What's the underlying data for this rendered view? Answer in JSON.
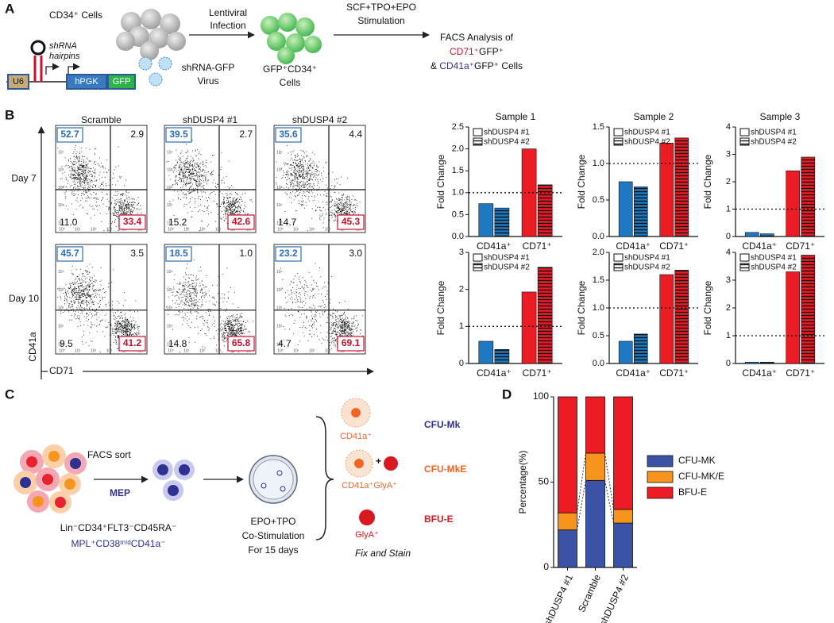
{
  "panels": {
    "a": {
      "label": "A",
      "cd34": "CD34⁺ Cells",
      "infection": [
        "Lentiviral",
        "Infection"
      ],
      "stimulation": [
        "SCF+TPO+EPO",
        "Stimulation"
      ],
      "facs": "FACS Analysis of",
      "cd71": "CD71⁺",
      "gfp1": "GFP⁺",
      "amp": "& ",
      "cd41a": "CD41a⁺",
      "gfp2": "GFP⁺ Cells",
      "hairpins": [
        "shRNA",
        "hairpins"
      ],
      "u6": "U6",
      "hpgk": "hPGK",
      "gfp": "GFP",
      "virus": [
        "shRNA-GFP",
        "Virus"
      ],
      "gfp_cells": [
        "GFP⁺CD34⁺",
        "Cells"
      ]
    },
    "b": {
      "label": "B",
      "columns": [
        "Scramble",
        "shDUSP4 #1",
        "shDUSP4 #2"
      ],
      "rows": [
        "Day 7",
        "Day 10"
      ],
      "y_axis": "CD41a",
      "x_axis": "CD71",
      "flow_ticks": [
        "10⁰",
        "10¹",
        "10²",
        "10³",
        "10⁴",
        "10⁵"
      ],
      "plots": [
        [
          {
            "ul": 52.7,
            "ur": 2.9,
            "ll": {
              "value": 11,
              "label": "11.0"
            },
            "lr": 33.4
          },
          {
            "ul": 39.5,
            "ur": 2.7,
            "ll": 15.2,
            "lr": 42.6
          },
          {
            "ul": 35.6,
            "ur": 4.4,
            "ll": 14.7,
            "lr": 45.3
          }
        ],
        [
          {
            "ul": 45.7,
            "ur": 3.5,
            "ll": 9.5,
            "lr": 41.2
          },
          {
            "ul": 18.5,
            "ur": {
              "value": 1,
              "label": "1.0"
            },
            "ll": 14.8,
            "lr": 65.8
          },
          {
            "ul": 23.2,
            "ur": {
              "value": 3,
              "label": "3.0"
            },
            "ll": 4.7,
            "lr": 69.1
          }
        ]
      ]
    },
    "c": {
      "label": "C",
      "facs_sort": "FACS sort",
      "mep": "MEP",
      "lin": "Lin⁻CD34⁺FLT3⁻CD45RA⁻",
      "mpl": "MPL⁺CD38ᵐⁱᵈCD41a⁻",
      "culture": [
        "EPO+TPO",
        "Co-Stimulation",
        "For 15 days"
      ],
      "colonies": [
        {
          "marker": "CD41a⁺",
          "name": "CFU-Mk"
        },
        {
          "marker": "CD41a⁺GlyA⁺",
          "name": "CFU-MkE"
        },
        {
          "marker": "GlyA⁺",
          "name": "BFU-E"
        }
      ],
      "plus": "+",
      "fix": "Fix and Stain"
    },
    "d": {
      "label": "D"
    }
  },
  "chart_data": [
    {
      "type": "bar",
      "title": "Sample 1",
      "ylabel": "Fold Change",
      "categories": [
        "CD41a⁺",
        "CD71⁺"
      ],
      "category_colors": [
        "#1f78c1",
        "#ec1c24"
      ],
      "series": [
        {
          "name": "shDUSP4 #1",
          "hatch": false,
          "values": [
            0.75,
            2.0
          ]
        },
        {
          "name": "shDUSP4 #2",
          "hatch": true,
          "values": [
            0.65,
            1.18
          ]
        }
      ],
      "reference_line": 1,
      "ylim": [
        0,
        2.5
      ],
      "yticks": [
        {
          "value": 0,
          "label": "0.0"
        },
        {
          "value": 0.5,
          "label": "0.5"
        },
        {
          "value": 1,
          "label": "1.0"
        },
        {
          "value": 1.5,
          "label": "1.5"
        },
        {
          "value": 2,
          "label": "2.0"
        },
        {
          "value": 2.5,
          "label": "2.5"
        }
      ]
    },
    {
      "type": "bar",
      "title": "Sample 2",
      "ylabel": "Fold Change",
      "categories": [
        "CD41a⁺",
        "CD71⁺"
      ],
      "category_colors": [
        "#1f78c1",
        "#ec1c24"
      ],
      "series": [
        {
          "name": "shDUSP4 #1",
          "hatch": false,
          "values": [
            0.75,
            1.28
          ]
        },
        {
          "name": "shDUSP4 #2",
          "hatch": true,
          "values": [
            0.68,
            1.35
          ]
        }
      ],
      "reference_line": 1,
      "ylim": [
        0,
        1.5
      ],
      "yticks": [
        {
          "value": 0,
          "label": "0.0"
        },
        {
          "value": 0.5,
          "label": "0.5"
        },
        {
          "value": 1,
          "label": "1.0"
        },
        1.5
      ]
    },
    {
      "type": "bar",
      "title": "Sample 3",
      "ylabel": "Fold Change",
      "categories": [
        "CD41a⁺",
        "CD71⁺"
      ],
      "category_colors": [
        "#1f78c1",
        "#ec1c24"
      ],
      "series": [
        {
          "name": "shDUSP4 #1",
          "hatch": false,
          "values": [
            0.15,
            2.4
          ]
        },
        {
          "name": "shDUSP4 #2",
          "hatch": true,
          "values": [
            0.1,
            2.9
          ]
        }
      ],
      "reference_line": 1,
      "ylim": [
        0,
        4
      ],
      "yticks": [
        0,
        1,
        2,
        3,
        4
      ]
    },
    {
      "type": "bar",
      "ylabel": "Fold Change",
      "categories": [
        "CD41a⁺",
        "CD71⁺"
      ],
      "category_colors": [
        "#1f78c1",
        "#ec1c24"
      ],
      "series": [
        {
          "name": "shDUSP4 #1",
          "hatch": false,
          "values": [
            0.6,
            1.93
          ]
        },
        {
          "name": "shDUSP4 #2",
          "hatch": true,
          "values": [
            0.38,
            2.6
          ]
        }
      ],
      "reference_line": 1,
      "ylim": [
        0,
        3
      ],
      "yticks": [
        0,
        1,
        2,
        3
      ]
    },
    {
      "type": "bar",
      "ylabel": "Fold Change",
      "categories": [
        "CD41a⁺",
        "CD71⁺"
      ],
      "category_colors": [
        "#1f78c1",
        "#ec1c24"
      ],
      "series": [
        {
          "name": "shDUSP4 #1",
          "hatch": false,
          "values": [
            0.4,
            1.6
          ]
        },
        {
          "name": "shDUSP4 #2",
          "hatch": true,
          "values": [
            0.53,
            1.68
          ]
        }
      ],
      "reference_line": 1,
      "ylim": [
        0,
        2
      ],
      "yticks": [
        {
          "value": 0,
          "label": "0.0"
        },
        {
          "value": 0.5,
          "label": "0.5"
        },
        {
          "value": 1,
          "label": "1.0"
        },
        1.5,
        {
          "value": 2,
          "label": "2.0"
        }
      ]
    },
    {
      "type": "bar",
      "ylabel": "Fold Change",
      "categories": [
        "CD41a⁺",
        "CD71⁺"
      ],
      "category_colors": [
        "#1f78c1",
        "#ec1c24"
      ],
      "series": [
        {
          "name": "shDUSP4 #1",
          "hatch": false,
          "values": [
            0.05,
            3.3
          ]
        },
        {
          "name": "shDUSP4 #2",
          "hatch": true,
          "values": [
            0.05,
            3.9
          ]
        }
      ],
      "reference_line": 1,
      "ylim": [
        0,
        4
      ],
      "yticks": [
        0,
        1,
        2,
        3,
        4
      ]
    },
    {
      "type": "stacked_bar",
      "ylabel": "Percentage(%)",
      "categories": [
        "shDUSP4 #1",
        "Scramble",
        "shDUSP4 #2"
      ],
      "series": [
        {
          "name": "CFU-MK",
          "color": "#3a53a4",
          "values": [
            22,
            51,
            26
          ]
        },
        {
          "name": "CFU-MK/E",
          "color": "#f7941d",
          "values": [
            10,
            16,
            8
          ]
        },
        {
          "name": "BFU-E",
          "color": "#ed1c24",
          "values": [
            68,
            33,
            66
          ]
        }
      ],
      "ylim": [
        0,
        100
      ],
      "yticks": [
        0,
        50,
        100
      ]
    }
  ]
}
